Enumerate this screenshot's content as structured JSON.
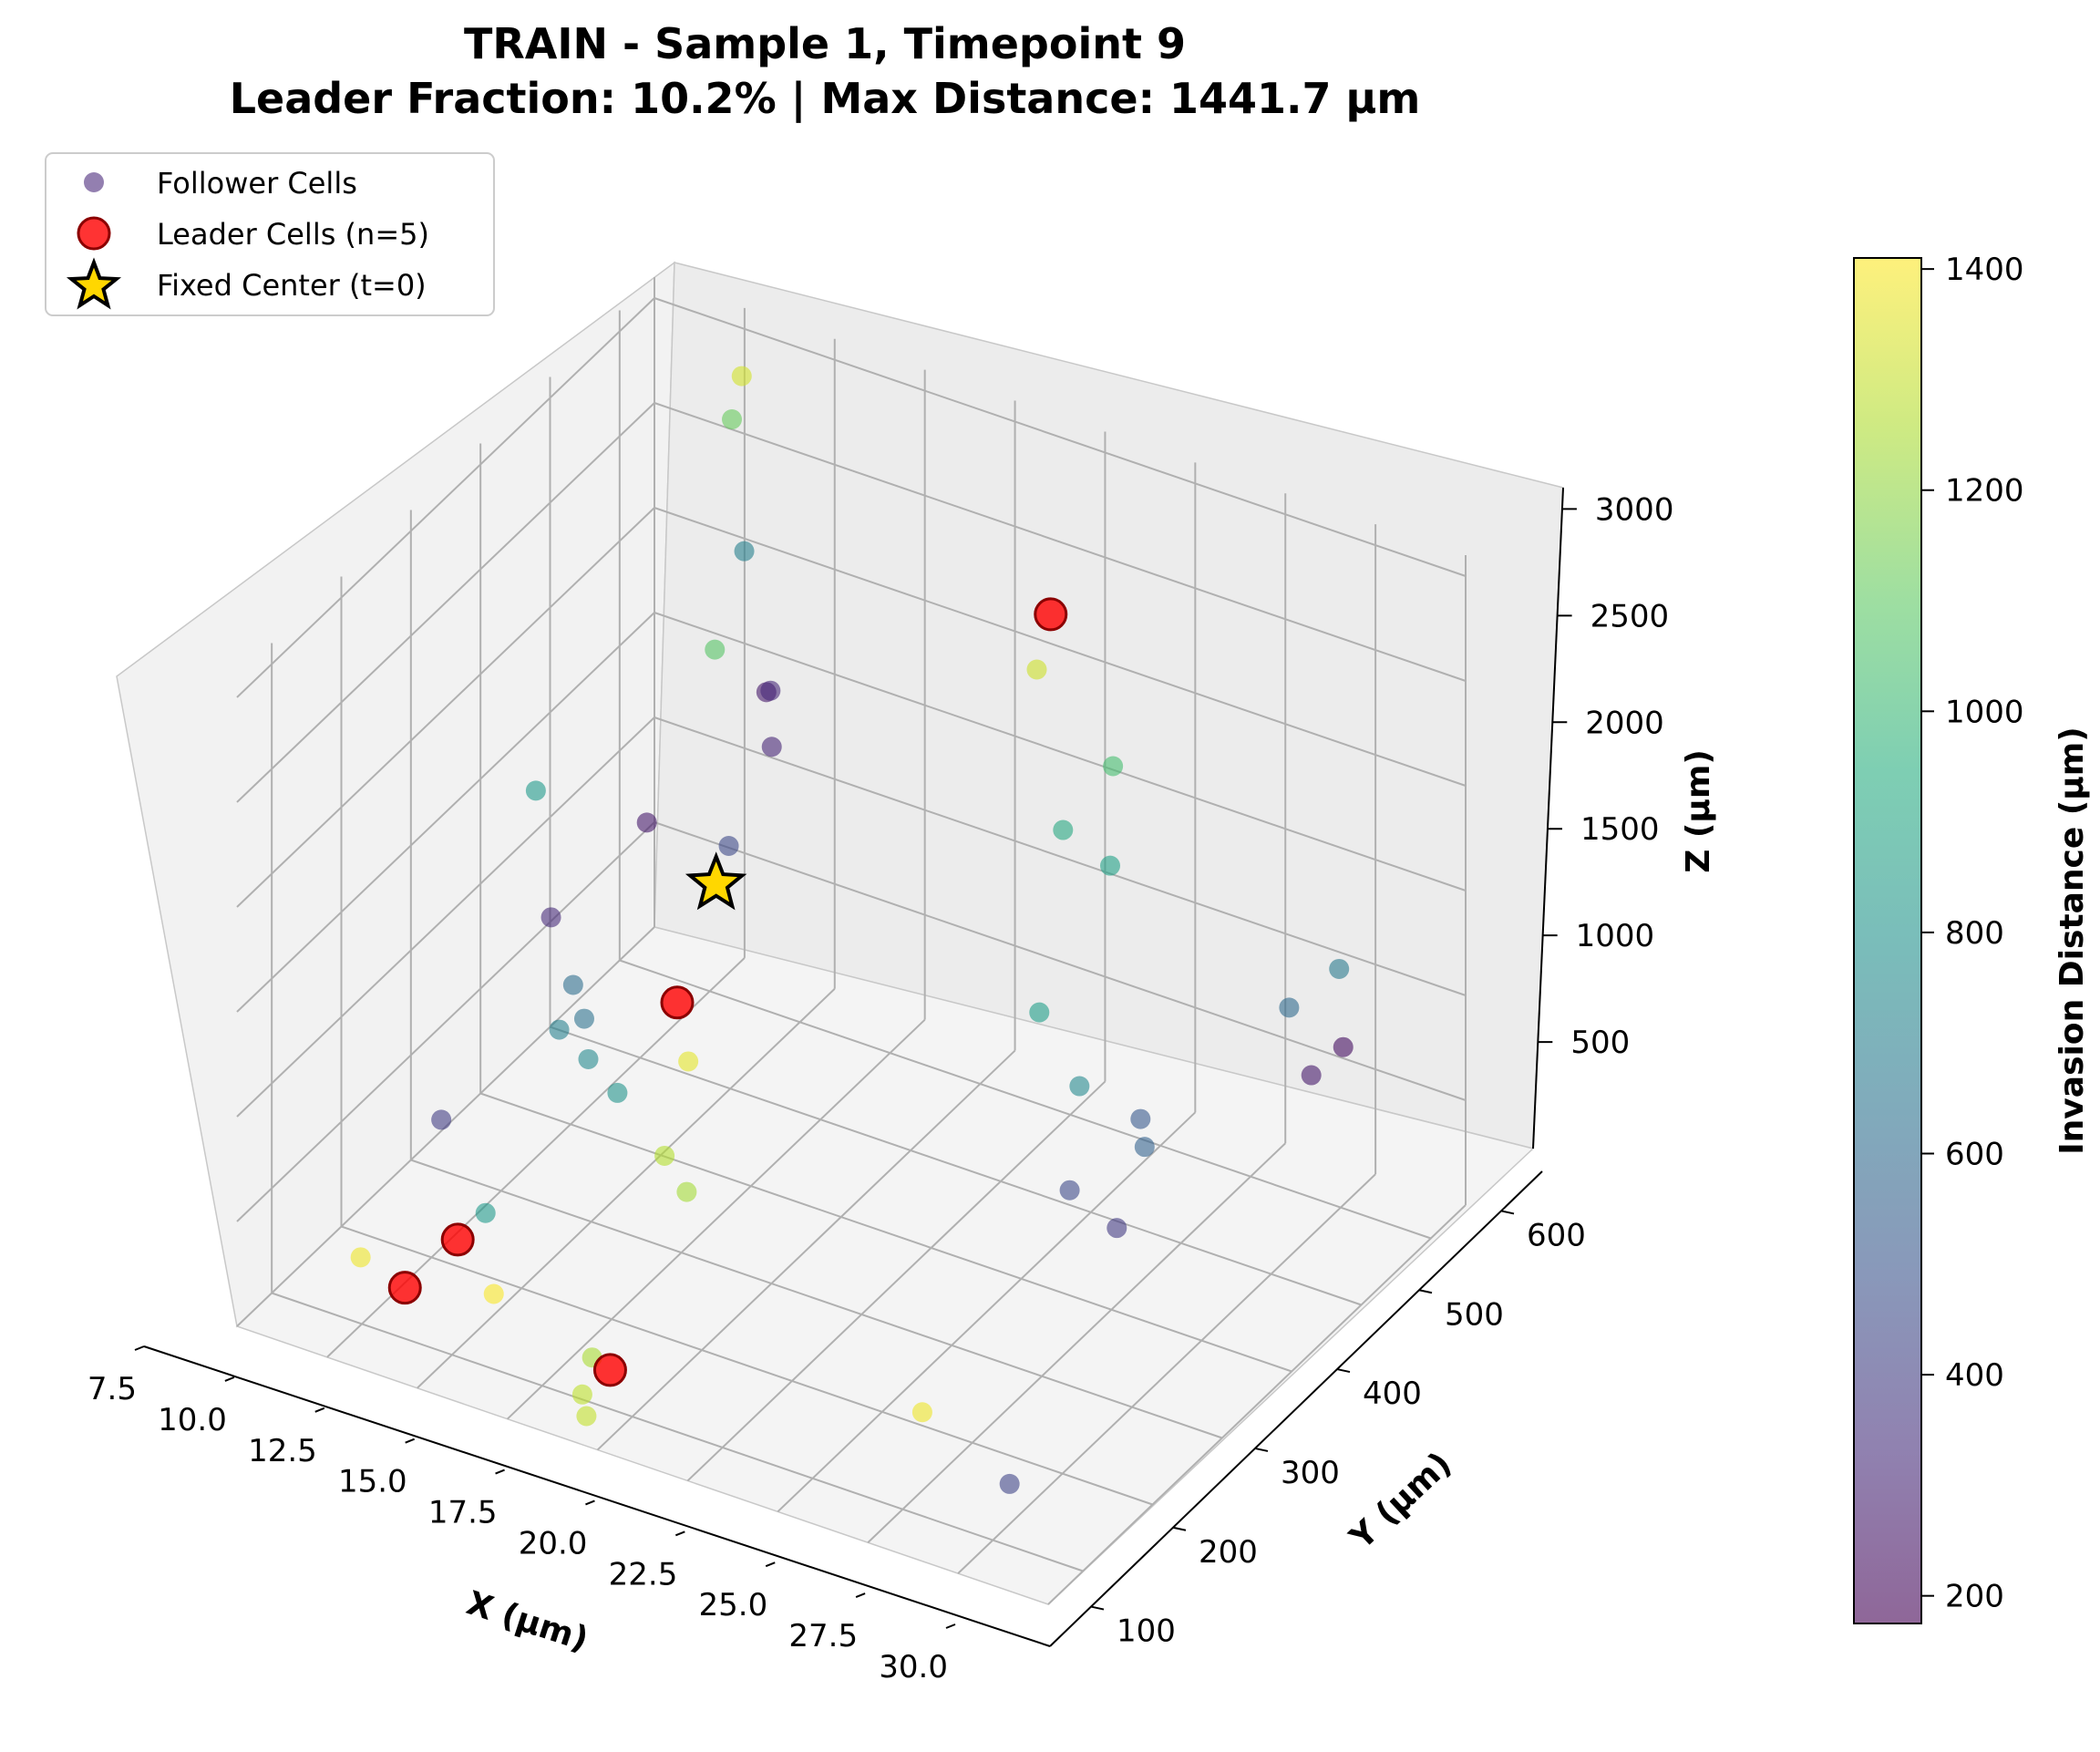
{
  "chart_data": {
    "type": "scatter",
    "projection": "3d",
    "title": "TRAIN - Sample 1, Timepoint 9",
    "subtitle": "Leader Fraction: 10.2% | Max Distance: 1441.7 µm",
    "xlabel": "X (µm)",
    "ylabel": "Y (µm)",
    "zlabel": "Z (µm)",
    "xlim": [
      7.5,
      30.0
    ],
    "ylim": [
      50,
      650
    ],
    "zlim": [
      0,
      3100
    ],
    "xticks": [
      "7.5",
      "10.0",
      "12.5",
      "15.0",
      "17.5",
      "20.0",
      "22.5",
      "25.0",
      "27.5",
      "30.0"
    ],
    "yticks": [
      "100",
      "200",
      "300",
      "400",
      "500",
      "600"
    ],
    "zticks": [
      "500",
      "1000",
      "1500",
      "2000",
      "2500",
      "3000"
    ],
    "grid": true,
    "legend": {
      "placement": "top-left",
      "entries": [
        "Follower Cells",
        "Leader Cells (n=5)",
        "Fixed Center (t=0)"
      ]
    },
    "colorbar": {
      "label": "Invasion Distance (µm)",
      "colormap": "viridis",
      "alpha": 0.6,
      "range": [
        175,
        1410
      ],
      "ticks": [
        "200",
        "400",
        "600",
        "800",
        "1000",
        "1200",
        "1400"
      ]
    },
    "series": [
      {
        "name": "Follower Cells",
        "marker": "circle",
        "points": [
          {
            "x": 10.5,
            "y": 620,
            "z": 2900,
            "d": 1330
          },
          {
            "x": 11.0,
            "y": 580,
            "z": 2850,
            "d": 1120
          },
          {
            "x": 14.0,
            "y": 400,
            "z": 2500,
            "d": 1080
          },
          {
            "x": 12.5,
            "y": 520,
            "z": 2500,
            "d": 720
          },
          {
            "x": 13.5,
            "y": 500,
            "z": 1950,
            "d": 260
          },
          {
            "x": 14.0,
            "y": 480,
            "z": 2050,
            "d": 320
          },
          {
            "x": 15.0,
            "y": 430,
            "z": 2000,
            "d": 310
          },
          {
            "x": 10.0,
            "y": 350,
            "z": 1750,
            "d": 840
          },
          {
            "x": 12.5,
            "y": 380,
            "z": 1650,
            "d": 260
          },
          {
            "x": 14.0,
            "y": 420,
            "z": 1500,
            "d": 450
          },
          {
            "x": 11.0,
            "y": 320,
            "z": 1300,
            "d": 330
          },
          {
            "x": 12.0,
            "y": 300,
            "z": 1100,
            "d": 620
          },
          {
            "x": 12.5,
            "y": 290,
            "z": 1000,
            "d": 640
          },
          {
            "x": 12.0,
            "y": 280,
            "z": 950,
            "d": 720
          },
          {
            "x": 13.0,
            "y": 270,
            "z": 900,
            "d": 760
          },
          {
            "x": 14.0,
            "y": 260,
            "z": 830,
            "d": 800
          },
          {
            "x": 15.0,
            "y": 310,
            "z": 880,
            "d": 1360
          },
          {
            "x": 15.5,
            "y": 250,
            "z": 650,
            "d": 1270
          },
          {
            "x": 16.5,
            "y": 230,
            "z": 600,
            "d": 1240
          },
          {
            "x": 9.5,
            "y": 240,
            "z": 500,
            "d": 400
          },
          {
            "x": 11.5,
            "y": 200,
            "z": 300,
            "d": 840
          },
          {
            "x": 9.0,
            "y": 150,
            "z": 100,
            "d": 1380
          },
          {
            "x": 12.5,
            "y": 160,
            "z": 100,
            "d": 1400
          },
          {
            "x": 16.0,
            "y": 120,
            "z": 130,
            "d": 1250
          },
          {
            "x": 16.5,
            "y": 80,
            "z": 110,
            "d": 1290
          },
          {
            "x": 17.0,
            "y": 60,
            "z": 100,
            "d": 1300
          },
          {
            "x": 21.0,
            "y": 500,
            "z": 2500,
            "d": 1320
          },
          {
            "x": 23.5,
            "y": 480,
            "z": 2250,
            "d": 1040
          },
          {
            "x": 22.5,
            "y": 460,
            "z": 1950,
            "d": 920
          },
          {
            "x": 24.0,
            "y": 450,
            "z": 1900,
            "d": 880
          },
          {
            "x": 23.0,
            "y": 400,
            "z": 1300,
            "d": 860
          },
          {
            "x": 24.5,
            "y": 380,
            "z": 1100,
            "d": 760
          },
          {
            "x": 26.0,
            "y": 390,
            "z": 1000,
            "d": 520
          },
          {
            "x": 26.5,
            "y": 370,
            "z": 960,
            "d": 560
          },
          {
            "x": 25.0,
            "y": 340,
            "z": 760,
            "d": 450
          },
          {
            "x": 26.5,
            "y": 330,
            "z": 700,
            "d": 390
          },
          {
            "x": 29.0,
            "y": 520,
            "z": 1480,
            "d": 680
          },
          {
            "x": 28.0,
            "y": 500,
            "z": 1300,
            "d": 600
          },
          {
            "x": 29.5,
            "y": 500,
            "z": 1200,
            "d": 220
          },
          {
            "x": 29.0,
            "y": 480,
            "z": 1100,
            "d": 260
          },
          {
            "x": 24.0,
            "y": 180,
            "z": 150,
            "d": 1380
          },
          {
            "x": 27.0,
            "y": 150,
            "z": 80,
            "d": 430
          }
        ]
      },
      {
        "name": "Leader Cells (n=5)",
        "marker": "circle",
        "color": "#ff0000",
        "points": [
          {
            "x": 21.0,
            "y": 520,
            "z": 2700
          },
          {
            "x": 14.5,
            "y": 320,
            "z": 1100
          },
          {
            "x": 11.5,
            "y": 160,
            "z": 300
          },
          {
            "x": 11.0,
            "y": 110,
            "z": 200
          },
          {
            "x": 16.5,
            "y": 120,
            "z": 100
          }
        ]
      },
      {
        "name": "Fixed Center (t=0)",
        "marker": "star",
        "color": "#ffd700",
        "points": [
          {
            "x": 15.0,
            "y": 350,
            "z": 1600
          }
        ]
      }
    ]
  }
}
